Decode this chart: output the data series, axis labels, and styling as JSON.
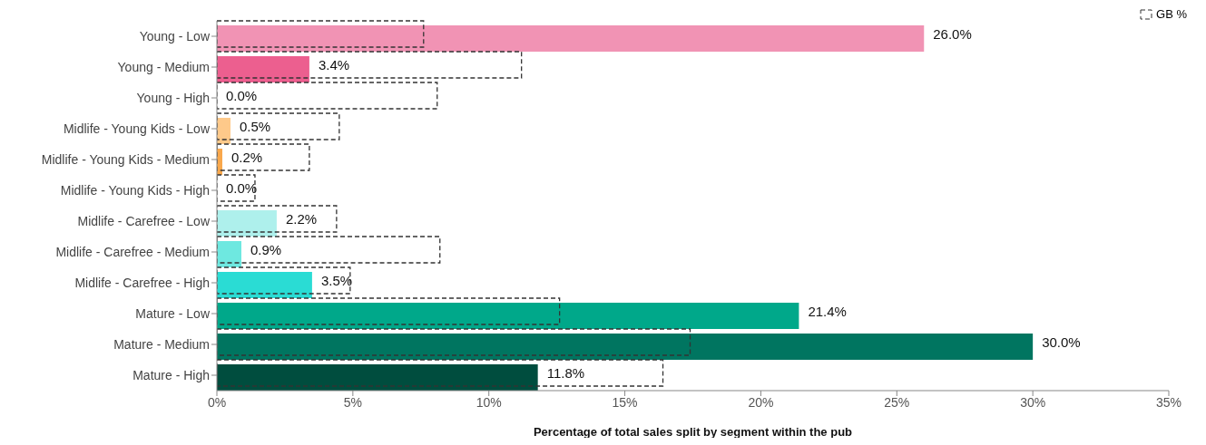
{
  "chart_data": {
    "type": "bar",
    "orientation": "horizontal",
    "xlabel": "Percentage of total sales split by segment within the pub",
    "categories": [
      "Young - Low",
      "Young - Medium",
      "Young - High",
      "Midlife - Young Kids - Low",
      "Midlife - Young Kids - Medium",
      "Midlife - Young Kids - High",
      "Midlife - Carefree - Low",
      "Midlife - Carefree - Medium",
      "Midlife - Carefree - High",
      "Mature - Low",
      "Mature - Medium",
      "Mature - High"
    ],
    "series": [
      {
        "values": [
          26.0,
          3.4,
          0.0,
          0.5,
          0.2,
          0.0,
          2.2,
          0.9,
          3.5,
          21.4,
          30.0,
          11.8
        ],
        "colors": [
          "#f193b4",
          "#ec5f8f",
          "#e83e78",
          "#fec98a",
          "#f9a84c",
          "#f08c1e",
          "#aef0ec",
          "#6ee8e0",
          "#2adcd4",
          "#00a88a",
          "#007560",
          "#004d3e"
        ],
        "value_labels": [
          "26.0%",
          "3.4%",
          "0.0%",
          "0.5%",
          "0.2%",
          "0.0%",
          "2.2%",
          "0.9%",
          "3.5%",
          "21.4%",
          "30.0%",
          "11.8%"
        ]
      },
      {
        "name": "GB %",
        "color": "#333333",
        "line_style": "dashed",
        "values": [
          7.6,
          11.2,
          8.1,
          4.5,
          3.4,
          1.4,
          4.4,
          8.2,
          4.9,
          12.6,
          17.4,
          16.4
        ]
      }
    ],
    "xlim": [
      0,
      35
    ],
    "xticks": [
      {
        "value": 0,
        "label": "0%"
      },
      {
        "value": 5,
        "label": "5%"
      },
      {
        "value": 10,
        "label": "10%"
      },
      {
        "value": 15,
        "label": "15%"
      },
      {
        "value": 20,
        "label": "20%"
      },
      {
        "value": 25,
        "label": "25%"
      },
      {
        "value": 30,
        "label": "30%"
      },
      {
        "value": 35,
        "label": "35%"
      }
    ],
    "grid": false,
    "legend": "top right"
  }
}
